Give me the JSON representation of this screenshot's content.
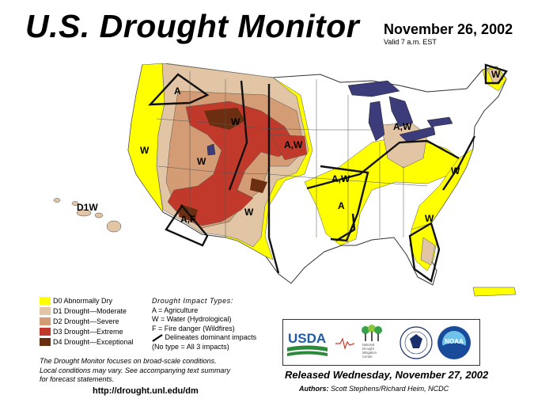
{
  "header": {
    "title": "U.S. Drought Monitor",
    "date": "November 26, 2002",
    "valid": "Valid 7 a.m. EST"
  },
  "legend": {
    "items": [
      {
        "label": "D0 Abnormally Dry",
        "color": "#ffff00"
      },
      {
        "label": "D1 Drought—Moderate",
        "color": "#e2c5a5"
      },
      {
        "label": "D2 Drought—Severe",
        "color": "#d49c74"
      },
      {
        "label": "D3 Drought—Extreme",
        "color": "#c0392b"
      },
      {
        "label": "D4 Drought—Exceptional",
        "color": "#6b2e10"
      }
    ]
  },
  "impact_types": {
    "title": "Drought Impact Types:",
    "agriculture": "A = Agriculture",
    "water": "W = Water (Hydrological)",
    "fire": "F = Fire danger (Wildfires)",
    "delineates": "Delineates dominant impacts",
    "no_type": "(No type = All 3 impacts)"
  },
  "notes": {
    "line1": "The Drought Monitor focuses on broad-scale conditions.",
    "line2": "Local conditions may vary. See accompanying text summary",
    "line3": "for forecast statements."
  },
  "url": "http://drought.unl.edu/dm",
  "logos": {
    "usda": "USDA",
    "ndmc": [
      "National",
      "Drought",
      "Mitigation",
      "Center"
    ],
    "noaa": "NOAA"
  },
  "released": "Released Wednesday, November 27, 2002",
  "authors": {
    "label": "Authors:",
    "names": "Scott Stephens/Richard Heim, NCDC"
  },
  "map_labels": {
    "hawaii": "D1W",
    "impacts": [
      "A",
      "W",
      "W",
      "W",
      "A,W",
      "A,W",
      "A,W",
      "A",
      "W",
      "W",
      "W",
      "A,F",
      "W"
    ]
  }
}
